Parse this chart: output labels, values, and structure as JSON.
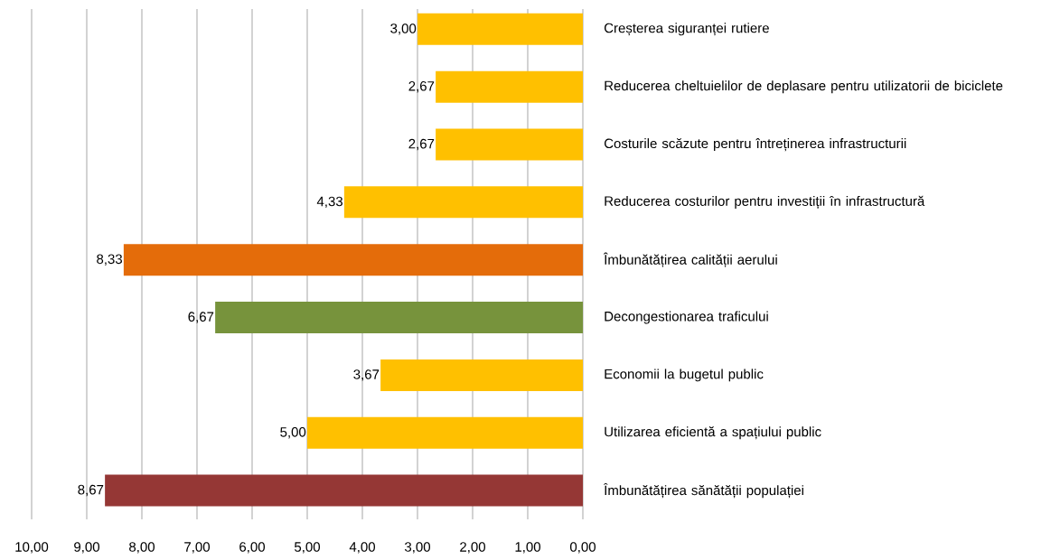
{
  "chart_data": {
    "type": "bar",
    "orientation": "horizontal",
    "categories": [
      "Creșterea siguranței rutiere",
      "Reducerea cheltuielilor de deplasare pentru utilizatorii de biciclete",
      "Costurile scăzute pentru întreținerea infrastructurii",
      "Reducerea costurilor pentru investiții în infrastructură",
      "Îmbunătățirea calității aerului",
      "Decongestionarea traficului",
      "Economii la bugetul public",
      "Utilizarea eficientă a spațiului public",
      "Îmbunătățirea sănătății populației"
    ],
    "values": [
      3.0,
      2.67,
      2.67,
      4.33,
      8.33,
      6.67,
      3.67,
      5.0,
      8.67
    ],
    "value_labels": [
      "3,00",
      "2,67",
      "2,67",
      "4,33",
      "8,33",
      "6,67",
      "3,67",
      "5,00",
      "8,67"
    ],
    "colors": [
      "#ffc000",
      "#ffc000",
      "#ffc000",
      "#ffc000",
      "#e46c0a",
      "#77933c",
      "#ffc000",
      "#ffc000",
      "#953735"
    ],
    "xlim": [
      10,
      0
    ],
    "xticks": [
      {
        "value": 10,
        "label": "10,00"
      },
      {
        "value": 9,
        "label": "9,00"
      },
      {
        "value": 8,
        "label": "8,00"
      },
      {
        "value": 7,
        "label": "7,00"
      },
      {
        "value": 6,
        "label": "6,00"
      },
      {
        "value": 5,
        "label": "5,00"
      },
      {
        "value": 4,
        "label": "4,00"
      },
      {
        "value": 3,
        "label": "3,00"
      },
      {
        "value": 2,
        "label": "2,00"
      },
      {
        "value": 1,
        "label": "1,00"
      },
      {
        "value": 0,
        "label": "0,00"
      }
    ],
    "grid": "x"
  }
}
